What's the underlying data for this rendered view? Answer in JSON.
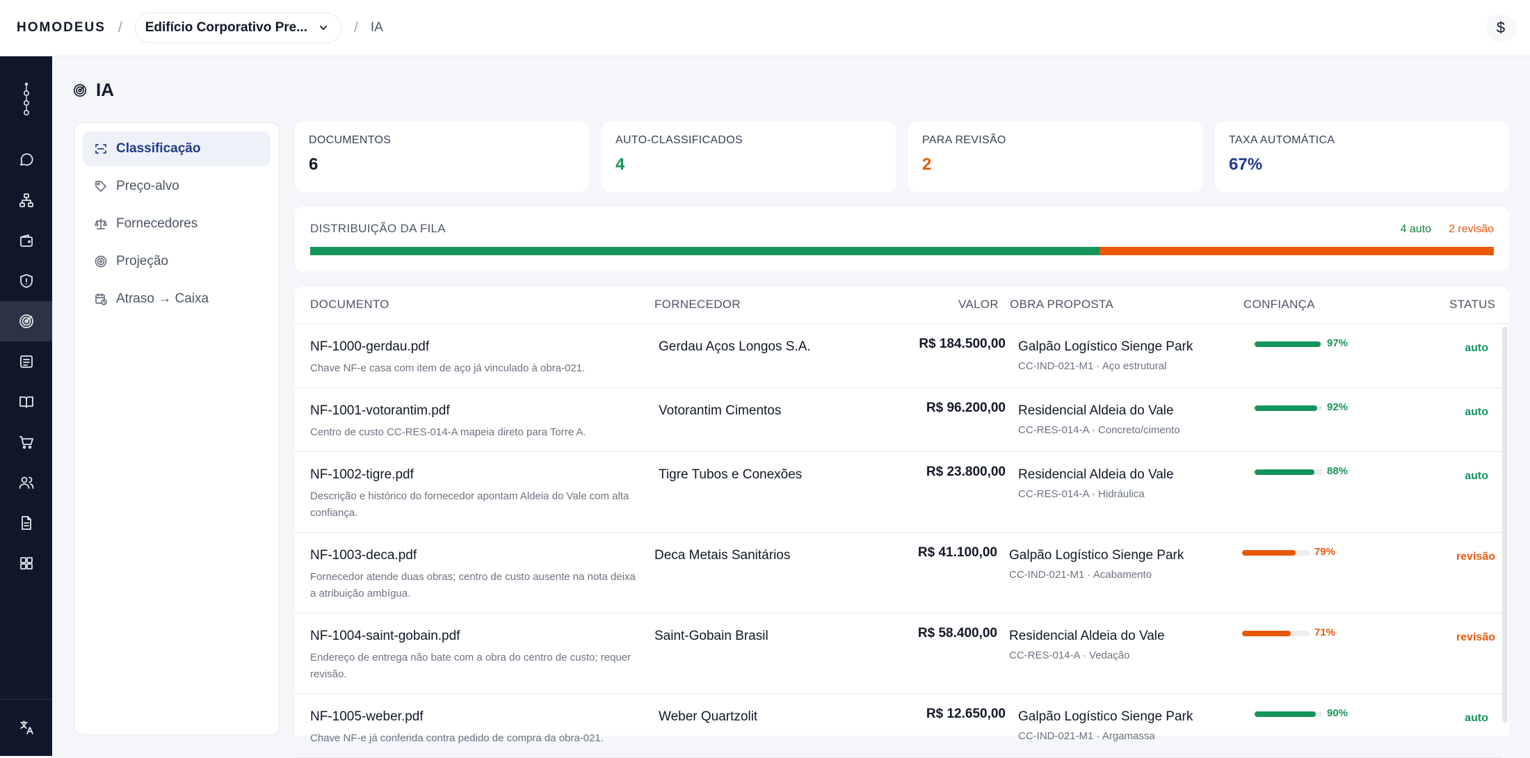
{
  "topbar": {
    "brand": "HOMODEUS",
    "separator": "/",
    "project": "Edifício Corporativo Pre...",
    "current": "IA",
    "currency_symbol": "$"
  },
  "sidebar": {
    "icons": [
      "chat-icon",
      "org-chart-icon",
      "wallet-icon",
      "shield-icon",
      "target-icon",
      "list-icon",
      "book-icon",
      "cart-icon",
      "users-icon",
      "document-icon",
      "grid-icon"
    ],
    "active": "target-icon",
    "footer_icon": "translate-icon"
  },
  "page": {
    "title": "IA"
  },
  "nav": {
    "items": [
      {
        "label": "Classificação",
        "icon": "scan-icon",
        "active": true
      },
      {
        "label": "Preço-alvo",
        "icon": "tag-icon",
        "active": false
      },
      {
        "label": "Fornecedores",
        "icon": "scale-icon",
        "active": false
      },
      {
        "label": "Projeção",
        "icon": "target-icon",
        "active": false
      },
      {
        "label": "Atraso → Caixa",
        "icon": "calendar-clock-icon",
        "active": false
      }
    ]
  },
  "stats": [
    {
      "label": "DOCUMENTOS",
      "value": "6",
      "color": "#111827"
    },
    {
      "label": "AUTO-CLASSIFICADOS",
      "value": "4",
      "color": "#15945a"
    },
    {
      "label": "PARA REVISÃO",
      "value": "2",
      "color": "#ea580c"
    },
    {
      "label": "TAXA AUTOMÁTICA",
      "value": "67%",
      "color": "#1e3a8a"
    }
  ],
  "distribution": {
    "label": "DISTRIBUIÇÃO DA FILA",
    "auto_label": "4 auto",
    "review_label": "2 revisão",
    "auto": 4,
    "review": 2,
    "colors": {
      "auto": "#15945a",
      "review": "#ea580c"
    }
  },
  "table": {
    "headers": {
      "documento": "DOCUMENTO",
      "fornecedor": "FORNECEDOR",
      "valor": "VALOR",
      "obra": "OBRA PROPOSTA",
      "confianca": "CONFIANÇA",
      "status": "STATUS"
    },
    "rows": [
      {
        "doc": "NF-1000-gerdau.pdf",
        "desc": "Chave NF-e casa com item de aço já vinculado à obra-021.",
        "supplier": "Gerdau Aços Longos S.A.",
        "valor": "R$ 184.500,00",
        "obra": "Galpão Logístico Sienge Park",
        "obra_sub": "CC-IND-021-M1 · Aço estrutural",
        "conf": 97,
        "conf_label": "97%",
        "status": "auto"
      },
      {
        "doc": "NF-1001-votorantim.pdf",
        "desc": "Centro de custo CC-RES-014-A mapeia direto para Torre A.",
        "supplier": "Votorantim Cimentos",
        "valor": "R$ 96.200,00",
        "obra": "Residencial Aldeia do Vale",
        "obra_sub": "CC-RES-014-A · Concreto/cimento",
        "conf": 92,
        "conf_label": "92%",
        "status": "auto"
      },
      {
        "doc": "NF-1002-tigre.pdf",
        "desc": "Descrição e histórico do fornecedor apontam Aldeia do Vale com alta confiança.",
        "supplier": "Tigre Tubos e Conexões",
        "valor": "R$ 23.800,00",
        "obra": "Residencial Aldeia do Vale",
        "obra_sub": "CC-RES-014-A · Hidráulica",
        "conf": 88,
        "conf_label": "88%",
        "status": "auto"
      },
      {
        "doc": "NF-1003-deca.pdf",
        "desc": "Fornecedor atende duas obras; centro de custo ausente na nota deixa a atribuição ambígua.",
        "supplier": "Deca Metais Sanitários",
        "valor": "R$ 41.100,00",
        "obra": "Galpão Logístico Sienge Park",
        "obra_sub": "CC-IND-021-M1 · Acabamento",
        "conf": 79,
        "conf_label": "79%",
        "status": "revisão"
      },
      {
        "doc": "NF-1004-saint-gobain.pdf",
        "desc": "Endereço de entrega não bate com a obra do centro de custo; requer revisão.",
        "supplier": "Saint-Gobain Brasil",
        "valor": "R$ 58.400,00",
        "obra": "Residencial Aldeia do Vale",
        "obra_sub": "CC-RES-014-A · Vedação",
        "conf": 71,
        "conf_label": "71%",
        "status": "revisão"
      },
      {
        "doc": "NF-1005-weber.pdf",
        "desc": "Chave NF-e já conferida contra pedido de compra da obra-021.",
        "supplier": "Weber Quartzolit",
        "valor": "R$ 12.650,00",
        "obra": "Galpão Logístico Sienge Park",
        "obra_sub": "CC-IND-021-M1 · Argamassa",
        "conf": 90,
        "conf_label": "90%",
        "status": "auto"
      }
    ]
  }
}
